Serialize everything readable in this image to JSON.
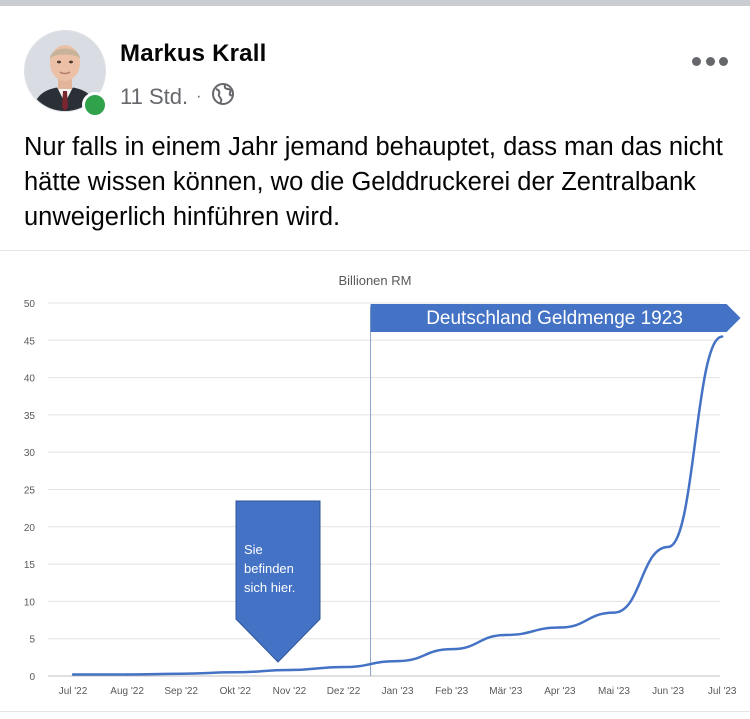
{
  "post": {
    "author": "Markus Krall",
    "time": "11 Std.",
    "separator": "·",
    "privacy_icon": "globe-icon",
    "more_icon": "more-options-icon",
    "text": "Nur falls in einem Jahr jemand behauptet, dass man das nicht hätte wissen können, wo die Gelddruckerei der Zentralbank unweigerlich hinführen wird.",
    "online_status_color": "#31a24c"
  },
  "chart_data": {
    "type": "line",
    "title": "Billionen RM",
    "categories": [
      "Jul '22",
      "Aug '22",
      "Sep '22",
      "Okt '22",
      "Nov '22",
      "Dez '22",
      "Jan '23",
      "Feb '23",
      "Mär '23",
      "Apr '23",
      "Mai '23",
      "Jun '23",
      "Jul '23"
    ],
    "series": [
      {
        "values": [
          0.2,
          0.2,
          0.3,
          0.5,
          0.8,
          1.2,
          2.0,
          3.6,
          5.5,
          6.5,
          8.5,
          17.3,
          45.5
        ]
      }
    ],
    "ylim": [
      0,
      50
    ],
    "yticks": [
      0,
      5,
      10,
      15,
      20,
      25,
      30,
      35,
      40,
      45,
      50
    ],
    "grid": true,
    "line_color": "#4472c4",
    "annotations": {
      "banner": "Deutschland Geldmenge 1923",
      "pointer": [
        "Sie",
        "befinden",
        "sich hier."
      ],
      "accent_color": "#4472c4",
      "divider_after_category": "Dez '22"
    }
  }
}
